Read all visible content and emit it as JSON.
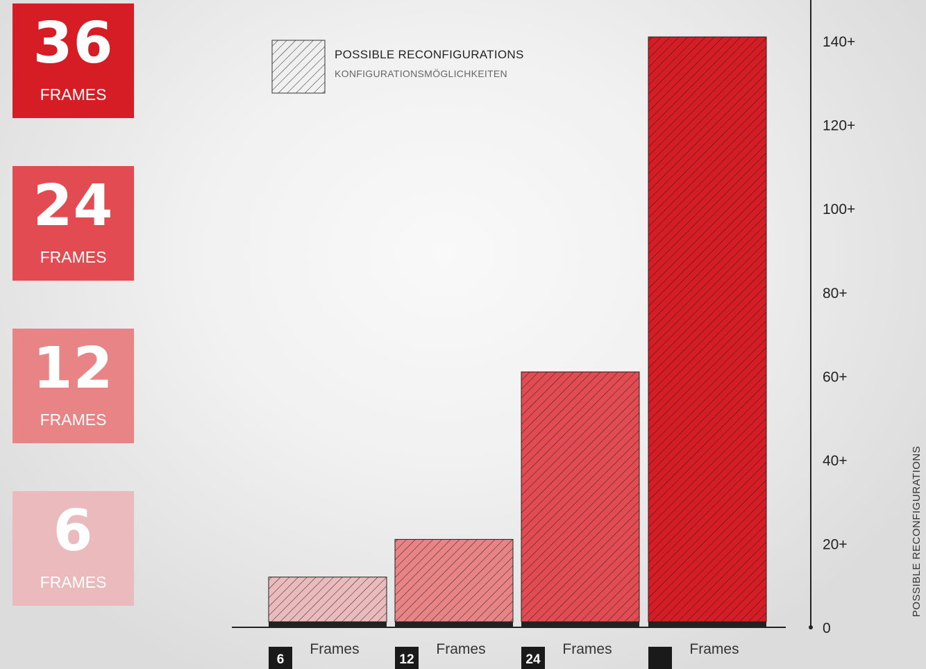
{
  "badges": [
    {
      "number": "36",
      "label": "FRAMES",
      "color": "#d61c24"
    },
    {
      "number": "24",
      "label": "FRAMES",
      "color": "#e24b52"
    },
    {
      "number": "12",
      "label": "FRAMES",
      "color": "#e88486"
    },
    {
      "number": "6",
      "label": "FRAMES",
      "color": "#ebbabc"
    }
  ],
  "legend": {
    "title": "POSSIBLE RECONFIGURATIONS",
    "subtitle": "KONFIGURATIONSMÖGLICHKEITEN"
  },
  "chart_data": {
    "type": "bar",
    "categories": [
      {
        "number": "6",
        "label": "Frames"
      },
      {
        "number": "12",
        "label": "Frames"
      },
      {
        "number": "24",
        "label": "Frames"
      },
      {
        "number": "",
        "label": "Frames"
      }
    ],
    "values": [
      12,
      21,
      61,
      141
    ],
    "colors": [
      "#ebbabc",
      "#e88486",
      "#e24b52",
      "#d61c24"
    ],
    "ylabel": "POSSIBLE RECONFIGURATIONS",
    "ylim": [
      0,
      145
    ],
    "yticks": [
      {
        "value": 0,
        "label": "0"
      },
      {
        "value": 20,
        "label": "20+"
      },
      {
        "value": 40,
        "label": "40+"
      },
      {
        "value": 60,
        "label": "60+"
      },
      {
        "value": 80,
        "label": "80+"
      },
      {
        "value": 100,
        "label": "100+"
      },
      {
        "value": 120,
        "label": "120+"
      },
      {
        "value": 140,
        "label": "140+"
      }
    ],
    "grid": false,
    "legend_position": "top-left",
    "legend_entries": [
      "POSSIBLE RECONFIGURATIONS"
    ]
  }
}
